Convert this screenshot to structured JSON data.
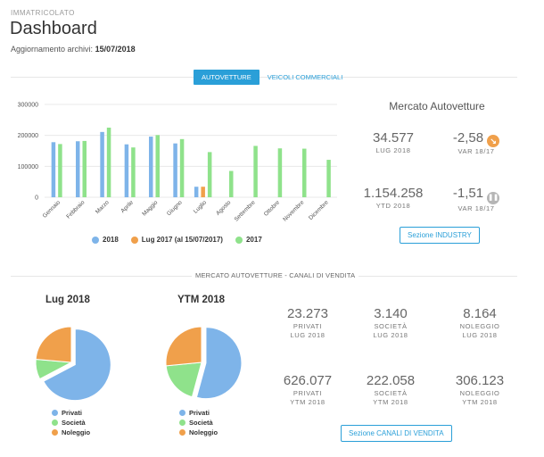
{
  "header": {
    "eyebrow": "IMMATRICOLATO",
    "title": "Dashboard",
    "updated_label": "Aggiornamento archivi:",
    "updated_value": "15/07/2018"
  },
  "tabs": [
    {
      "label": "AUTOVETTURE",
      "active": true
    },
    {
      "label": "VEICOLI COMMERCIALI",
      "active": false
    }
  ],
  "colors": {
    "accent": "#2a9fd8",
    "series_2018": "#7eb4e9",
    "series_lug2017": "#f0a04b",
    "series_2017": "#8fe28b",
    "var_down": "#f0a04b",
    "var_flat": "#b5b5b5"
  },
  "chart_data": {
    "type": "bar",
    "categories": [
      "Gennaio",
      "Febbraio",
      "Marzo",
      "Aprile",
      "Maggio",
      "Giugno",
      "Luglio",
      "Agosto",
      "Settembre",
      "Ottobre",
      "Novembre",
      "Dicembre"
    ],
    "yticks": [
      "300000",
      "200000",
      "100000",
      "0"
    ],
    "ylim": [
      0,
      300000
    ],
    "grid": true,
    "legend_position": "bottom",
    "series": [
      {
        "name": "2018",
        "color": "#7eb4e9",
        "values": [
          178000,
          181000,
          211000,
          171000,
          196000,
          174000,
          34000,
          null,
          null,
          null,
          null,
          null
        ]
      },
      {
        "name": "Lug 2017 (al 15/07/2017)",
        "color": "#f0a04b",
        "values": [
          null,
          null,
          null,
          null,
          null,
          null,
          34000,
          null,
          null,
          null,
          null,
          null
        ]
      },
      {
        "name": "2017",
        "color": "#8fe28b",
        "values": [
          172000,
          182000,
          225000,
          161000,
          201000,
          188000,
          146000,
          85000,
          166000,
          158000,
          157000,
          121000
        ]
      }
    ]
  },
  "market": {
    "title": "Mercato Autovetture",
    "month_value": "34.577",
    "month_label": "LUG 2018",
    "month_var": "-2,58",
    "month_var_label": "VAR 18/17",
    "month_var_icon": "arrow-down-right-icon",
    "ytd_value": "1.154.258",
    "ytd_label": "YTD 2018",
    "ytd_var": "-1,51",
    "ytd_var_label": "VAR 18/17",
    "ytd_var_icon": "pause-icon",
    "button": "Sezione INDUSTRY"
  },
  "channels": {
    "section_title": "MERCATO AUTOVETTURE - CANALI DI VENDITA",
    "pies": [
      {
        "title": "Lug 2018",
        "slices": [
          {
            "name": "Privati",
            "value": 23273,
            "color": "#7eb4e9"
          },
          {
            "name": "Società",
            "value": 3140,
            "color": "#8fe28b"
          },
          {
            "name": "Noleggio",
            "value": 8164,
            "color": "#f0a04b"
          }
        ]
      },
      {
        "title": "YTM 2018",
        "slices": [
          {
            "name": "Privati",
            "value": 626077,
            "color": "#7eb4e9"
          },
          {
            "name": "Società",
            "value": 222058,
            "color": "#8fe28b"
          },
          {
            "name": "Noleggio",
            "value": 306123,
            "color": "#f0a04b"
          }
        ]
      }
    ],
    "stats": [
      {
        "value": "23.273",
        "label": "PRIVATI",
        "period": "LUG 2018"
      },
      {
        "value": "3.140",
        "label": "SOCIETÀ",
        "period": "LUG 2018"
      },
      {
        "value": "8.164",
        "label": "NOLEGGIO",
        "period": "LUG 2018"
      },
      {
        "value": "626.077",
        "label": "PRIVATI",
        "period": "YTM 2018"
      },
      {
        "value": "222.058",
        "label": "SOCIETÀ",
        "period": "YTM 2018"
      },
      {
        "value": "306.123",
        "label": "NOLEGGIO",
        "period": "YTM 2018"
      }
    ],
    "button": "Sezione CANALI DI VENDITA"
  }
}
